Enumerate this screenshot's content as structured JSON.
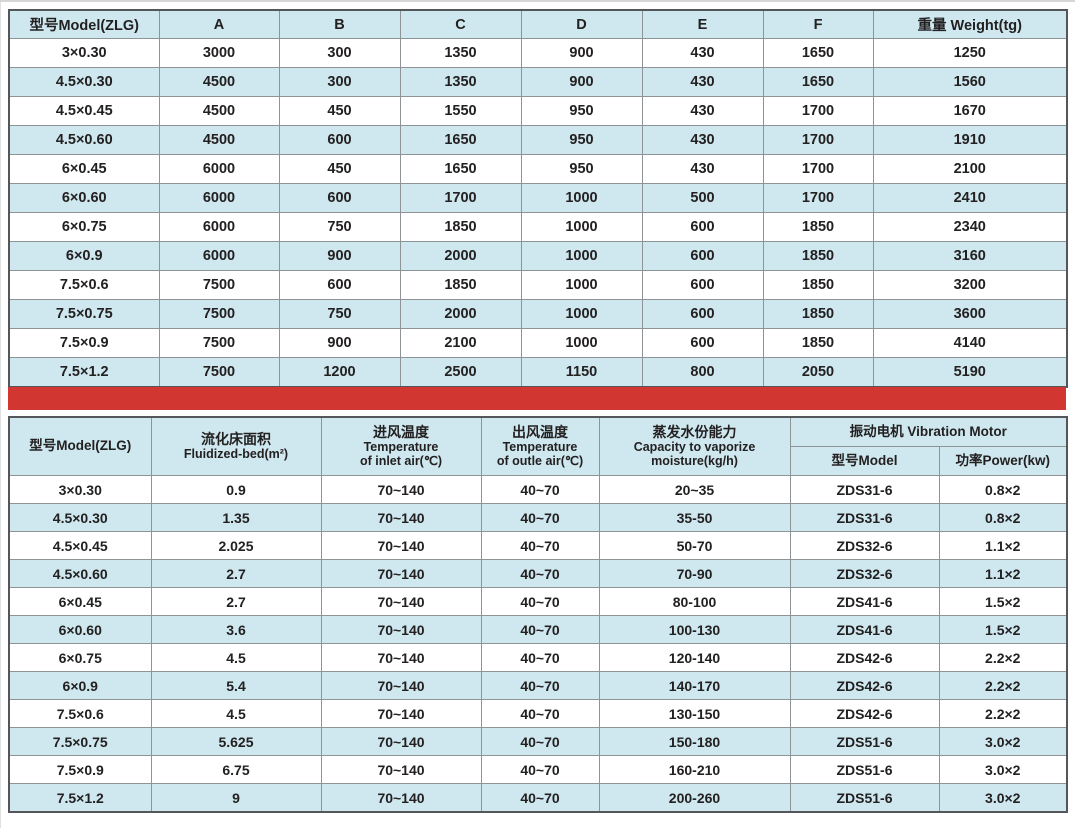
{
  "colors": {
    "accent_red": "#d23630",
    "row_stripe_blue": "#cfe8ef",
    "grid_line": "#8e9396",
    "outer_border": "#55565a",
    "text": "#232021"
  },
  "dimension_table": {
    "headers": [
      "型号Model(ZLG)",
      "A",
      "B",
      "C",
      "D",
      "E",
      "F",
      "重量 Weight(tg)"
    ],
    "rows": [
      [
        "3×0.30",
        "3000",
        "300",
        "1350",
        "900",
        "430",
        "1650",
        "1250"
      ],
      [
        "4.5×0.30",
        "4500",
        "300",
        "1350",
        "900",
        "430",
        "1650",
        "1560"
      ],
      [
        "4.5×0.45",
        "4500",
        "450",
        "1550",
        "950",
        "430",
        "1700",
        "1670"
      ],
      [
        "4.5×0.60",
        "4500",
        "600",
        "1650",
        "950",
        "430",
        "1700",
        "1910"
      ],
      [
        "6×0.45",
        "6000",
        "450",
        "1650",
        "950",
        "430",
        "1700",
        "2100"
      ],
      [
        "6×0.60",
        "6000",
        "600",
        "1700",
        "1000",
        "500",
        "1700",
        "2410"
      ],
      [
        "6×0.75",
        "6000",
        "750",
        "1850",
        "1000",
        "600",
        "1850",
        "2340"
      ],
      [
        "6×0.9",
        "6000",
        "900",
        "2000",
        "1000",
        "600",
        "1850",
        "3160"
      ],
      [
        "7.5×0.6",
        "7500",
        "600",
        "1850",
        "1000",
        "600",
        "1850",
        "3200"
      ],
      [
        "7.5×0.75",
        "7500",
        "750",
        "2000",
        "1000",
        "600",
        "1850",
        "3600"
      ],
      [
        "7.5×0.9",
        "7500",
        "900",
        "2100",
        "1000",
        "600",
        "1850",
        "4140"
      ],
      [
        "7.5×1.2",
        "7500",
        "1200",
        "2500",
        "1150",
        "800",
        "2050",
        "5190"
      ]
    ]
  },
  "spec_table": {
    "headers": {
      "model": "型号Model(ZLG)",
      "bed_area": [
        "流化床面积",
        "Fluidized-bed(m²)"
      ],
      "inlet_temp": [
        "进风温度",
        "Temperature",
        "of inlet air(℃)"
      ],
      "outlet_temp": [
        "出风温度",
        "Temperature",
        "of outle air(℃)"
      ],
      "capacity": [
        "蒸发水份能力",
        "Capacity to vaporize",
        "moisture(kg/h)"
      ],
      "motor_group": "振动电机 Vibration Motor",
      "motor_model": "型号Model",
      "motor_power": "功率Power(kw)"
    },
    "rows": [
      [
        "3×0.30",
        "0.9",
        "70~140",
        "40~70",
        "20~35",
        "ZDS31-6",
        "0.8×2"
      ],
      [
        "4.5×0.30",
        "1.35",
        "70~140",
        "40~70",
        "35-50",
        "ZDS31-6",
        "0.8×2"
      ],
      [
        "4.5×0.45",
        "2.025",
        "70~140",
        "40~70",
        "50-70",
        "ZDS32-6",
        "1.1×2"
      ],
      [
        "4.5×0.60",
        "2.7",
        "70~140",
        "40~70",
        "70-90",
        "ZDS32-6",
        "1.1×2"
      ],
      [
        "6×0.45",
        "2.7",
        "70~140",
        "40~70",
        "80-100",
        "ZDS41-6",
        "1.5×2"
      ],
      [
        "6×0.60",
        "3.6",
        "70~140",
        "40~70",
        "100-130",
        "ZDS41-6",
        "1.5×2"
      ],
      [
        "6×0.75",
        "4.5",
        "70~140",
        "40~70",
        "120-140",
        "ZDS42-6",
        "2.2×2"
      ],
      [
        "6×0.9",
        "5.4",
        "70~140",
        "40~70",
        "140-170",
        "ZDS42-6",
        "2.2×2"
      ],
      [
        "7.5×0.6",
        "4.5",
        "70~140",
        "40~70",
        "130-150",
        "ZDS42-6",
        "2.2×2"
      ],
      [
        "7.5×0.75",
        "5.625",
        "70~140",
        "40~70",
        "150-180",
        "ZDS51-6",
        "3.0×2"
      ],
      [
        "7.5×0.9",
        "6.75",
        "70~140",
        "40~70",
        "160-210",
        "ZDS51-6",
        "3.0×2"
      ],
      [
        "7.5×1.2",
        "9",
        "70~140",
        "40~70",
        "200-260",
        "ZDS51-6",
        "3.0×2"
      ]
    ]
  }
}
